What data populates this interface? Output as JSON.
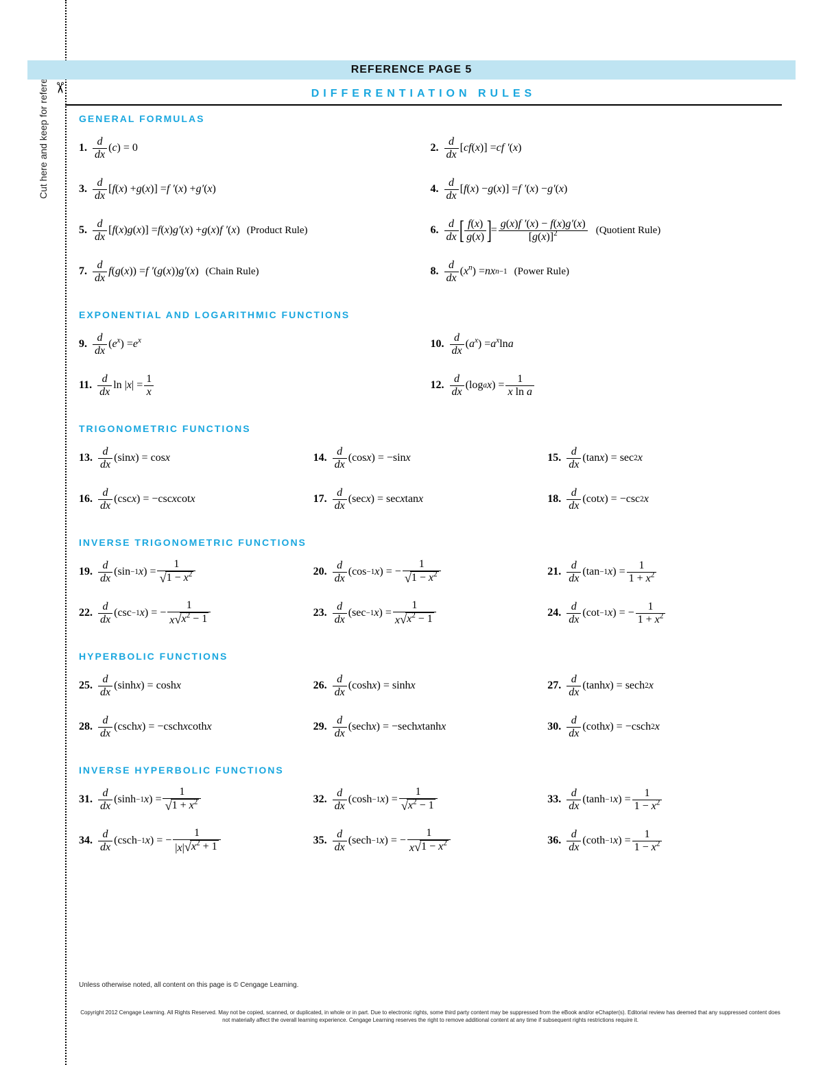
{
  "banner": "REFERENCE PAGE 5",
  "subhead": "DIFFERENTIATION  RULES",
  "sidetext": "Cut here and keep for reference",
  "sections": {
    "general": "GENERAL FORMULAS",
    "explog": "EXPONENTIAL AND LOGARITHMIC FUNCTIONS",
    "trig": "TRIGONOMETRIC FUNCTIONS",
    "invtrig": "INVERSE TRIGONOMETRIC FUNCTIONS",
    "hyp": "HYPERBOLIC FUNCTIONS",
    "invhyp": "INVERSE HYPERBOLIC FUNCTIONS"
  },
  "notes": {
    "product": "(Product Rule)",
    "quotient": "(Quotient Rule)",
    "chain": "(Chain Rule)",
    "power": "(Power Rule)"
  },
  "nums": {
    "n1": "1.",
    "n2": "2.",
    "n3": "3.",
    "n4": "4.",
    "n5": "5.",
    "n6": "6.",
    "n7": "7.",
    "n8": "8.",
    "n9": "9.",
    "n10": "10.",
    "n11": "11.",
    "n12": "12.",
    "n13": "13.",
    "n14": "14.",
    "n15": "15.",
    "n16": "16.",
    "n17": "17.",
    "n18": "18.",
    "n19": "19.",
    "n20": "20.",
    "n21": "21.",
    "n22": "22.",
    "n23": "23.",
    "n24": "24.",
    "n25": "25.",
    "n26": "26.",
    "n27": "27.",
    "n28": "28.",
    "n29": "29.",
    "n30": "30.",
    "n31": "31.",
    "n32": "32.",
    "n33": "33.",
    "n34": "34.",
    "n35": "35.",
    "n36": "36."
  },
  "footer_text": "Unless otherwise noted, all content on this page is © Cengage Learning.",
  "copyright": "Copyright 2012 Cengage Learning. All Rights Reserved. May not be copied, scanned, or duplicated, in whole or in part. Due to electronic rights, some third party content may be suppressed from the eBook and/or eChapter(s). Editorial review has deemed that any suppressed content does not materially affect the overall learning experience. Cengage Learning reserves the right to remove additional content at any time if subsequent rights restrictions require it.",
  "colors": {
    "accent": "#1aa7df",
    "banner_bg": "#bfe4f2"
  }
}
